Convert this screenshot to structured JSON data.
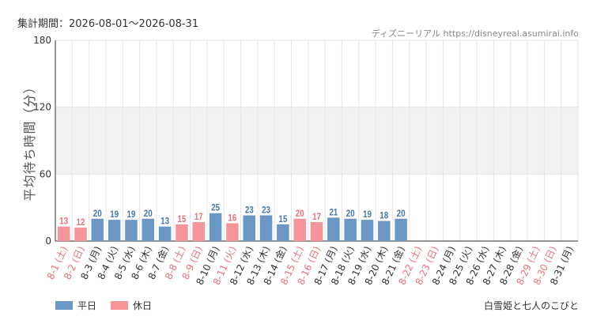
{
  "header": {
    "period": "集計期間：2026-08-01～2026-08-31",
    "source": "ディズニーリアル https://disneyreal.asumirai.info"
  },
  "attraction_name": "白雪姫と七人のこびと",
  "colors": {
    "weekday": "#6b97c4",
    "holiday": "#f5959a",
    "holiday_label": "#e8737a",
    "band": "#f1f1f1",
    "grid": "#e6e6e6",
    "axis": "#333333"
  },
  "legend": [
    {
      "label": "平日",
      "color": "#6b97c4"
    },
    {
      "label": "休日",
      "color": "#f5959a"
    }
  ],
  "chart_data": {
    "type": "bar",
    "ylabel": "平均待ち時間（分）",
    "ylim": [
      0,
      180
    ],
    "yticks": [
      0,
      60,
      120,
      180
    ],
    "shaded_band": [
      60,
      120
    ],
    "categories": [
      "8-1 (土)",
      "8-2 (日)",
      "8-3 (月)",
      "8-4 (火)",
      "8-5 (水)",
      "8-6 (木)",
      "8-7 (金)",
      "8-8 (土)",
      "8-9 (日)",
      "8-10 (月)",
      "8-11 (火)",
      "8-12 (水)",
      "8-13 (木)",
      "8-14 (金)",
      "8-15 (土)",
      "8-16 (日)",
      "8-17 (月)",
      "8-18 (火)",
      "8-19 (水)",
      "8-20 (木)",
      "8-21 (金)",
      "8-22 (土)",
      "8-23 (日)",
      "8-24 (月)",
      "8-25 (火)",
      "8-26 (水)",
      "8-27 (木)",
      "8-28 (金)",
      "8-29 (土)",
      "8-30 (日)",
      "8-31 (月)"
    ],
    "holiday": [
      true,
      true,
      false,
      false,
      false,
      false,
      false,
      true,
      true,
      false,
      true,
      false,
      false,
      false,
      true,
      true,
      false,
      false,
      false,
      false,
      false,
      true,
      true,
      false,
      false,
      false,
      false,
      false,
      true,
      true,
      false
    ],
    "values": [
      13,
      12,
      20,
      19,
      19,
      20,
      13,
      15,
      17,
      25,
      16,
      23,
      23,
      15,
      20,
      17,
      21,
      20,
      19,
      18,
      20,
      null,
      null,
      null,
      null,
      null,
      null,
      null,
      null,
      null,
      null
    ]
  }
}
